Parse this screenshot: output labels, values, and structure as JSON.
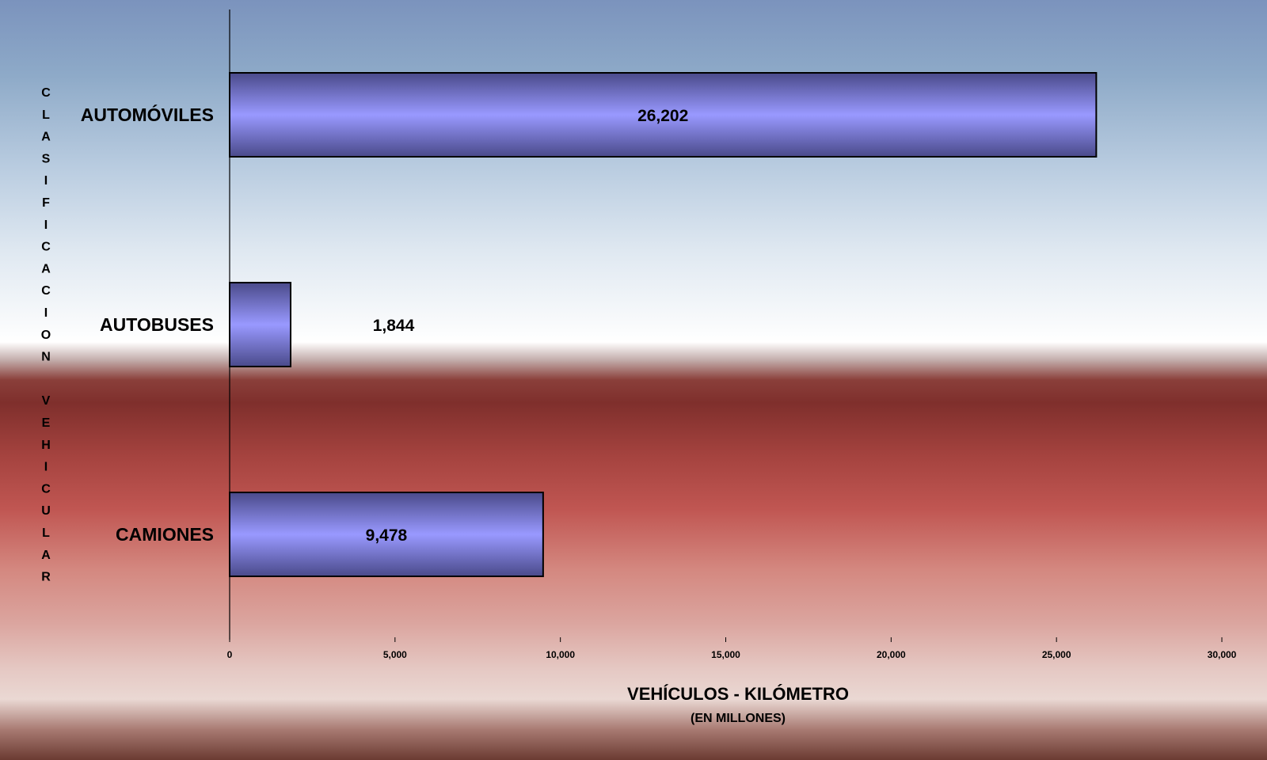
{
  "chart_data": {
    "type": "bar",
    "orientation": "horizontal",
    "categories": [
      "AUTOMÓVILES",
      "AUTOBUSES",
      "CAMIONES"
    ],
    "values": [
      26202,
      1844,
      9478
    ],
    "value_labels": [
      "26,202",
      "1,844",
      "9,478"
    ],
    "xlabel": "VEHÍCULOS - KILÓMETRO",
    "xlabel_sub": "(EN MILLONES)",
    "ylabel": "CLASIFICACION VEHICULAR",
    "xlim": [
      0,
      30000
    ],
    "x_ticks": [
      0,
      5000,
      10000,
      15000,
      20000,
      25000,
      30000
    ],
    "x_tick_labels": [
      "0",
      "5,000",
      "10,000",
      "15,000",
      "20,000",
      "25,000",
      "30,000"
    ],
    "grid": false,
    "legend": "none",
    "colors": {
      "bar_mid": "#9999ff",
      "bar_edge": "#4a4a8a",
      "bar_border": "#000000"
    }
  }
}
